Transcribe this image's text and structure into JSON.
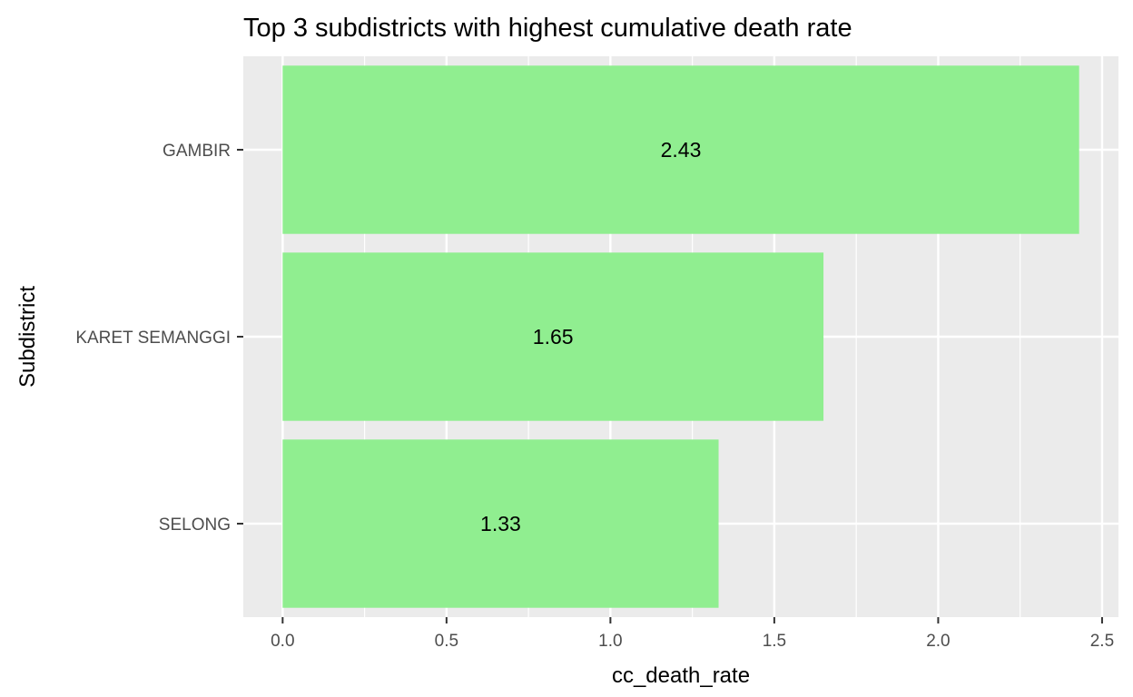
{
  "chart_data": {
    "type": "bar",
    "orientation": "horizontal",
    "title": "Top 3 subdistricts with highest cumulative death rate",
    "xlabel": "cc_death_rate",
    "ylabel": "Subdistrict",
    "categories": [
      "GAMBIR",
      "KARET SEMANGGI",
      "SELONG"
    ],
    "values": [
      2.43,
      1.65,
      1.33
    ],
    "data_labels": [
      "2.43",
      "1.65",
      "1.33"
    ],
    "x_ticks": [
      "0.0",
      "0.5",
      "1.0",
      "1.5",
      "2.0",
      "2.5"
    ],
    "xlim": [
      -0.12,
      2.55
    ],
    "grid": true,
    "legend": "none",
    "colors": {
      "bar": "#90EE90",
      "panel": "#EBEBEB",
      "grid": "#FFFFFF",
      "tick": "#333333"
    }
  }
}
